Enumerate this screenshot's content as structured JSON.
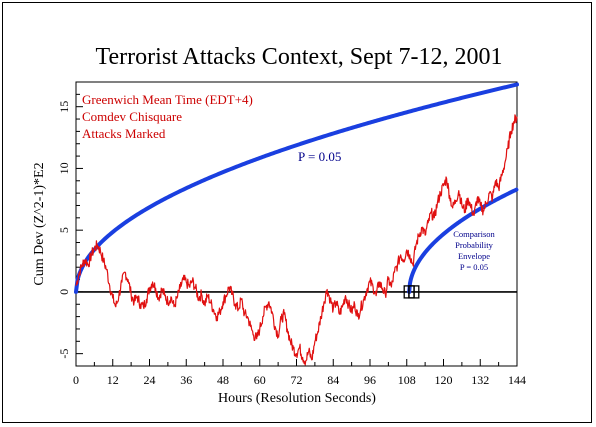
{
  "chart_data": {
    "type": "line",
    "title": "Terrorist Attacks Context, Sept 7-12, 2001",
    "xlabel": "Hours (Resolution Seconds)",
    "ylabel": "Cum Dev (Z^2-1)*E2",
    "xlim": [
      0,
      144
    ],
    "ylim": [
      -6,
      17
    ],
    "x_ticks": [
      0,
      12,
      24,
      36,
      48,
      60,
      72,
      84,
      96,
      108,
      120,
      132,
      144
    ],
    "y_ticks": [
      -5,
      0,
      5,
      10,
      15
    ],
    "grid": false,
    "annotations": {
      "legend_lines": [
        "Greenwich Mean Time (EDT+4)",
        "Comdev Chisquare",
        "Attacks Marked"
      ],
      "p_label": "P = 0.05",
      "envelope_label": [
        "Comparison",
        "Probability",
        "Envelope",
        "P = 0.05"
      ]
    },
    "attack_markers": [
      {
        "x": 108.8,
        "y": 0
      },
      {
        "x": 110.3,
        "y": 0
      }
    ],
    "envelope_start": 108.8,
    "colors": {
      "data": "#e01010",
      "envelope": "#1a3fe0",
      "text_red": "#cc0000",
      "text_blue": "#00008b"
    },
    "series": [
      {
        "x": [
          0,
          1,
          2,
          3,
          4,
          5,
          6,
          7,
          8,
          9,
          10,
          11,
          12,
          13,
          14,
          15,
          16,
          17,
          18,
          19,
          20,
          21,
          22,
          23,
          24,
          25,
          26,
          27,
          28,
          29,
          30,
          31,
          32,
          33,
          34,
          35,
          36,
          37,
          38,
          39,
          40,
          41,
          42,
          43,
          44,
          45,
          46,
          47,
          48,
          49,
          50,
          51,
          52,
          53,
          54,
          55,
          56,
          57,
          58,
          59,
          60,
          61,
          62,
          63,
          64,
          65,
          66,
          67,
          68,
          69,
          70,
          71,
          72,
          73,
          74,
          75,
          76,
          77,
          78,
          79,
          80,
          81,
          82,
          83,
          84,
          85,
          86,
          87,
          88,
          89,
          90,
          91,
          92,
          93,
          94,
          95,
          96,
          97,
          98,
          99,
          100,
          101,
          102,
          103,
          104,
          105,
          106,
          107,
          108,
          109,
          110,
          111,
          112,
          113,
          114,
          115,
          116,
          117,
          118,
          119,
          120,
          121,
          122,
          123,
          124,
          125,
          126,
          127,
          128,
          129,
          130,
          131,
          132,
          133,
          134,
          135,
          136,
          137,
          138,
          139,
          140,
          141,
          142,
          143,
          144
        ],
        "values": [
          0.5,
          1.5,
          2.2,
          2.6,
          2.2,
          3.0,
          3.5,
          3.8,
          3.3,
          2.5,
          1.8,
          0.5,
          -0.5,
          -1.2,
          -0.3,
          0.8,
          1.6,
          1.0,
          -0.2,
          -0.8,
          -0.4,
          -1.0,
          -1.2,
          -0.6,
          0.3,
          0.8,
          0.3,
          -0.5,
          0.2,
          -0.3,
          -0.8,
          -0.4,
          -1.2,
          -0.5,
          0.3,
          1.0,
          0.8,
          0.4,
          0.9,
          0.3,
          -0.5,
          -0.2,
          -1.0,
          -0.3,
          -0.9,
          -1.5,
          -2.0,
          -1.6,
          -0.8,
          -0.3,
          0.4,
          -0.2,
          -1.0,
          -1.4,
          -0.6,
          -1.8,
          -2.0,
          -2.8,
          -3.5,
          -3.8,
          -3.0,
          -2.0,
          -1.2,
          -0.8,
          -1.6,
          -2.8,
          -3.5,
          -2.2,
          -1.8,
          -3.0,
          -4.0,
          -4.6,
          -5.0,
          -4.5,
          -5.3,
          -5.6,
          -4.8,
          -5.5,
          -4.0,
          -3.2,
          -2.0,
          -0.8,
          0.2,
          -0.6,
          -1.4,
          -0.8,
          -1.8,
          -1.2,
          -0.3,
          -1.0,
          -1.6,
          -1.0,
          -2.0,
          -1.3,
          -0.6,
          0.2,
          0.8,
          0.4,
          -0.3,
          0.8,
          0.3,
          -0.2,
          1.0,
          0.4,
          1.6,
          2.2,
          3.0,
          2.6,
          3.4,
          3.0,
          2.2,
          3.8,
          4.6,
          5.2,
          4.6,
          5.6,
          6.4,
          6.0,
          7.2,
          8.0,
          8.6,
          9.2,
          7.8,
          6.8,
          7.4,
          8.2,
          7.0,
          6.6,
          7.6,
          6.8,
          6.2,
          7.6,
          7.0,
          6.6,
          7.2,
          8.0,
          7.6,
          9.0,
          8.4,
          9.4,
          10.4,
          11.6,
          13.0,
          13.8,
          14.2
        ]
      }
    ]
  }
}
